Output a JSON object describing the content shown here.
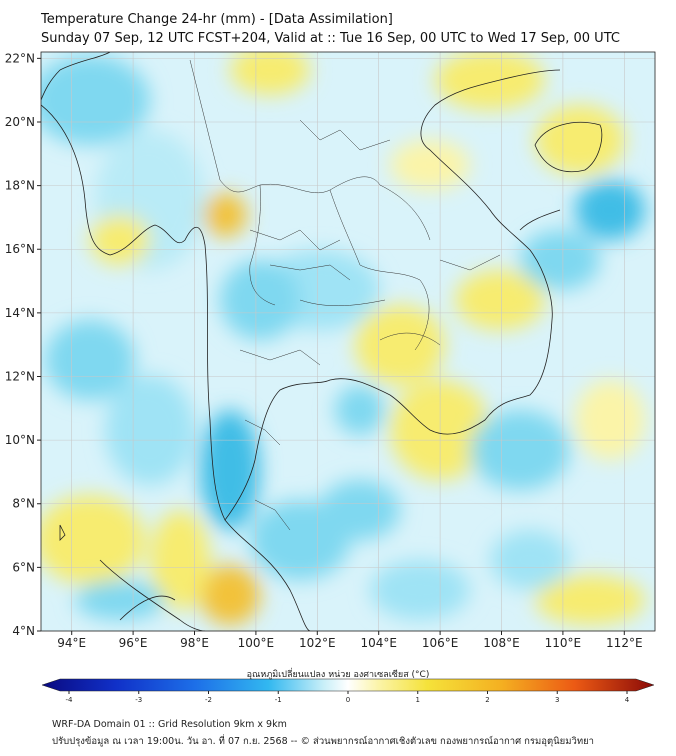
{
  "header": {
    "title": "Temperature Change 24-hr (mm) - [Data Assimilation]",
    "subtitle": "Sunday 07 Sep, 12 UTC FCST+204, Valid at :: Tue 16 Sep, 00 UTC to Wed 17 Sep, 00 UTC"
  },
  "axes": {
    "lat_labels": [
      "22°N",
      "20°N",
      "18°N",
      "16°N",
      "14°N",
      "12°N",
      "10°N",
      "8°N",
      "6°N",
      "4°N"
    ],
    "lon_labels": [
      "94°E",
      "96°E",
      "98°E",
      "100°E",
      "102°E",
      "104°E",
      "106°E",
      "108°E",
      "110°E",
      "112°E"
    ],
    "lat_values": [
      22,
      20,
      18,
      16,
      14,
      12,
      10,
      8,
      6,
      4
    ],
    "lon_values": [
      94,
      96,
      98,
      100,
      102,
      104,
      106,
      108,
      110,
      112
    ],
    "lon_range": [
      93,
      113
    ],
    "lat_range": [
      4,
      22.2
    ],
    "grid": true
  },
  "colorbar": {
    "label": "อุณหภูมิเปลี่ยนแปลง หน่วย องศาเซลเซียส (°C)",
    "ticks": [
      "-4",
      "-3",
      "-2",
      "-1",
      "0",
      "1",
      "2",
      "3",
      "4"
    ],
    "tick_values": [
      -4,
      -3,
      -2,
      -1,
      0,
      1,
      2,
      3,
      4
    ],
    "range": [
      -4,
      4
    ],
    "colors": [
      "#0a0a80",
      "#1030c8",
      "#1d6fe8",
      "#32b8f0",
      "#9fe3f5",
      "#ffffff",
      "#ffffff",
      "#fbf4a8",
      "#f5e23a",
      "#f4b021",
      "#ec5a14",
      "#d11a0e",
      "#8a0a08"
    ]
  },
  "footer": {
    "line1": "WRF-DA Domain 01 :: Grid Resolution 9km x 9km",
    "line2": "ปรับปรุงข้อมูล ณ เวลา 19:00น. วัน อา. ที่ 07 ก.ย. 2568 -- © ส่วนพยากรณ์อากาศเชิงตัวเลข กองพยากรณ์อากาศ กรมอุตุนิยมวิทยา"
  },
  "field_colors": {
    "positive": "#f7ec70",
    "strong_positive": "#f2c23a",
    "negative": "#7fd8f0",
    "strong_negative": "#3fbde6",
    "neutral": "#ffffff",
    "coastline": "#222222",
    "grid": "#c8c8c8"
  }
}
